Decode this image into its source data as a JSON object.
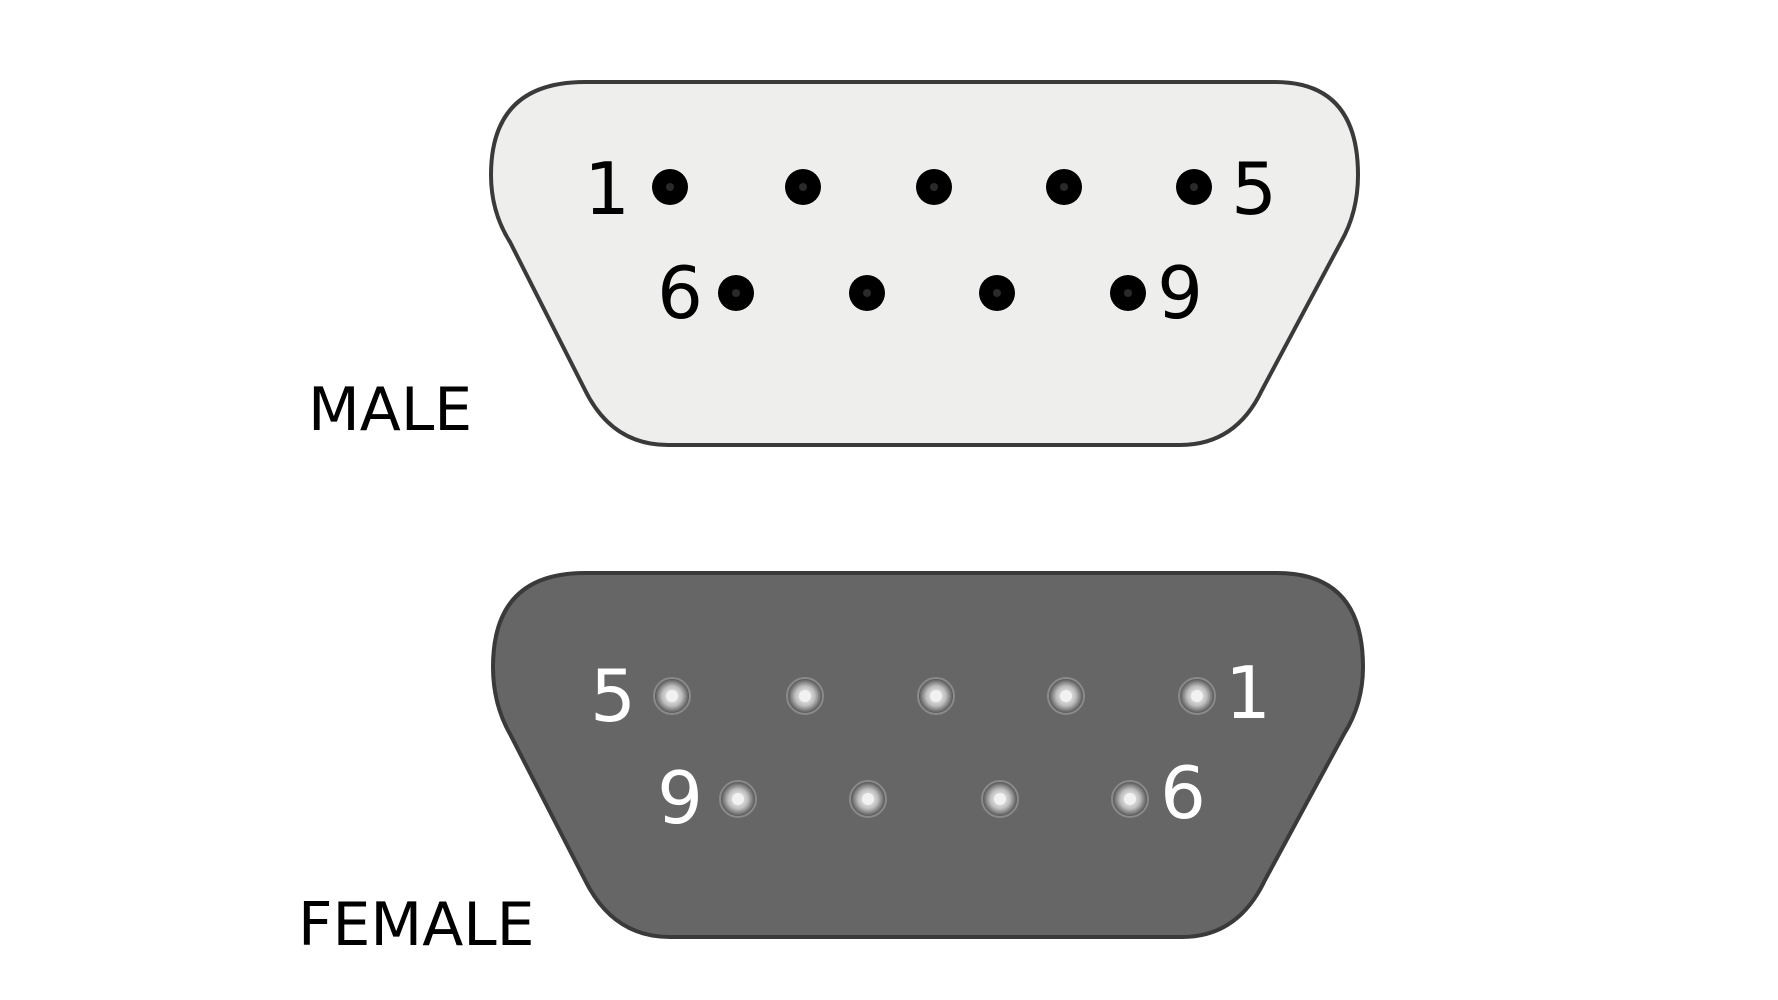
{
  "colors": {
    "male_shell": "#eeeeec",
    "female_shell": "#666666",
    "outline": "#3a3a3a",
    "male_pin": "#000000",
    "female_socket_ring": "#8a8a8a",
    "female_socket_center": "#f2f2f2",
    "male_text": "#000000",
    "female_text": "#ffffff"
  },
  "male": {
    "label": "MALE",
    "pin_labels": {
      "top_left": "1",
      "top_right": "5",
      "bottom_left": "6",
      "bottom_right": "9"
    },
    "top_row_count": 5,
    "bottom_row_count": 4
  },
  "female": {
    "label": "FEMALE",
    "pin_labels": {
      "top_left": "5",
      "top_right": "1",
      "bottom_left": "9",
      "bottom_right": "6"
    },
    "top_row_count": 5,
    "bottom_row_count": 4
  }
}
